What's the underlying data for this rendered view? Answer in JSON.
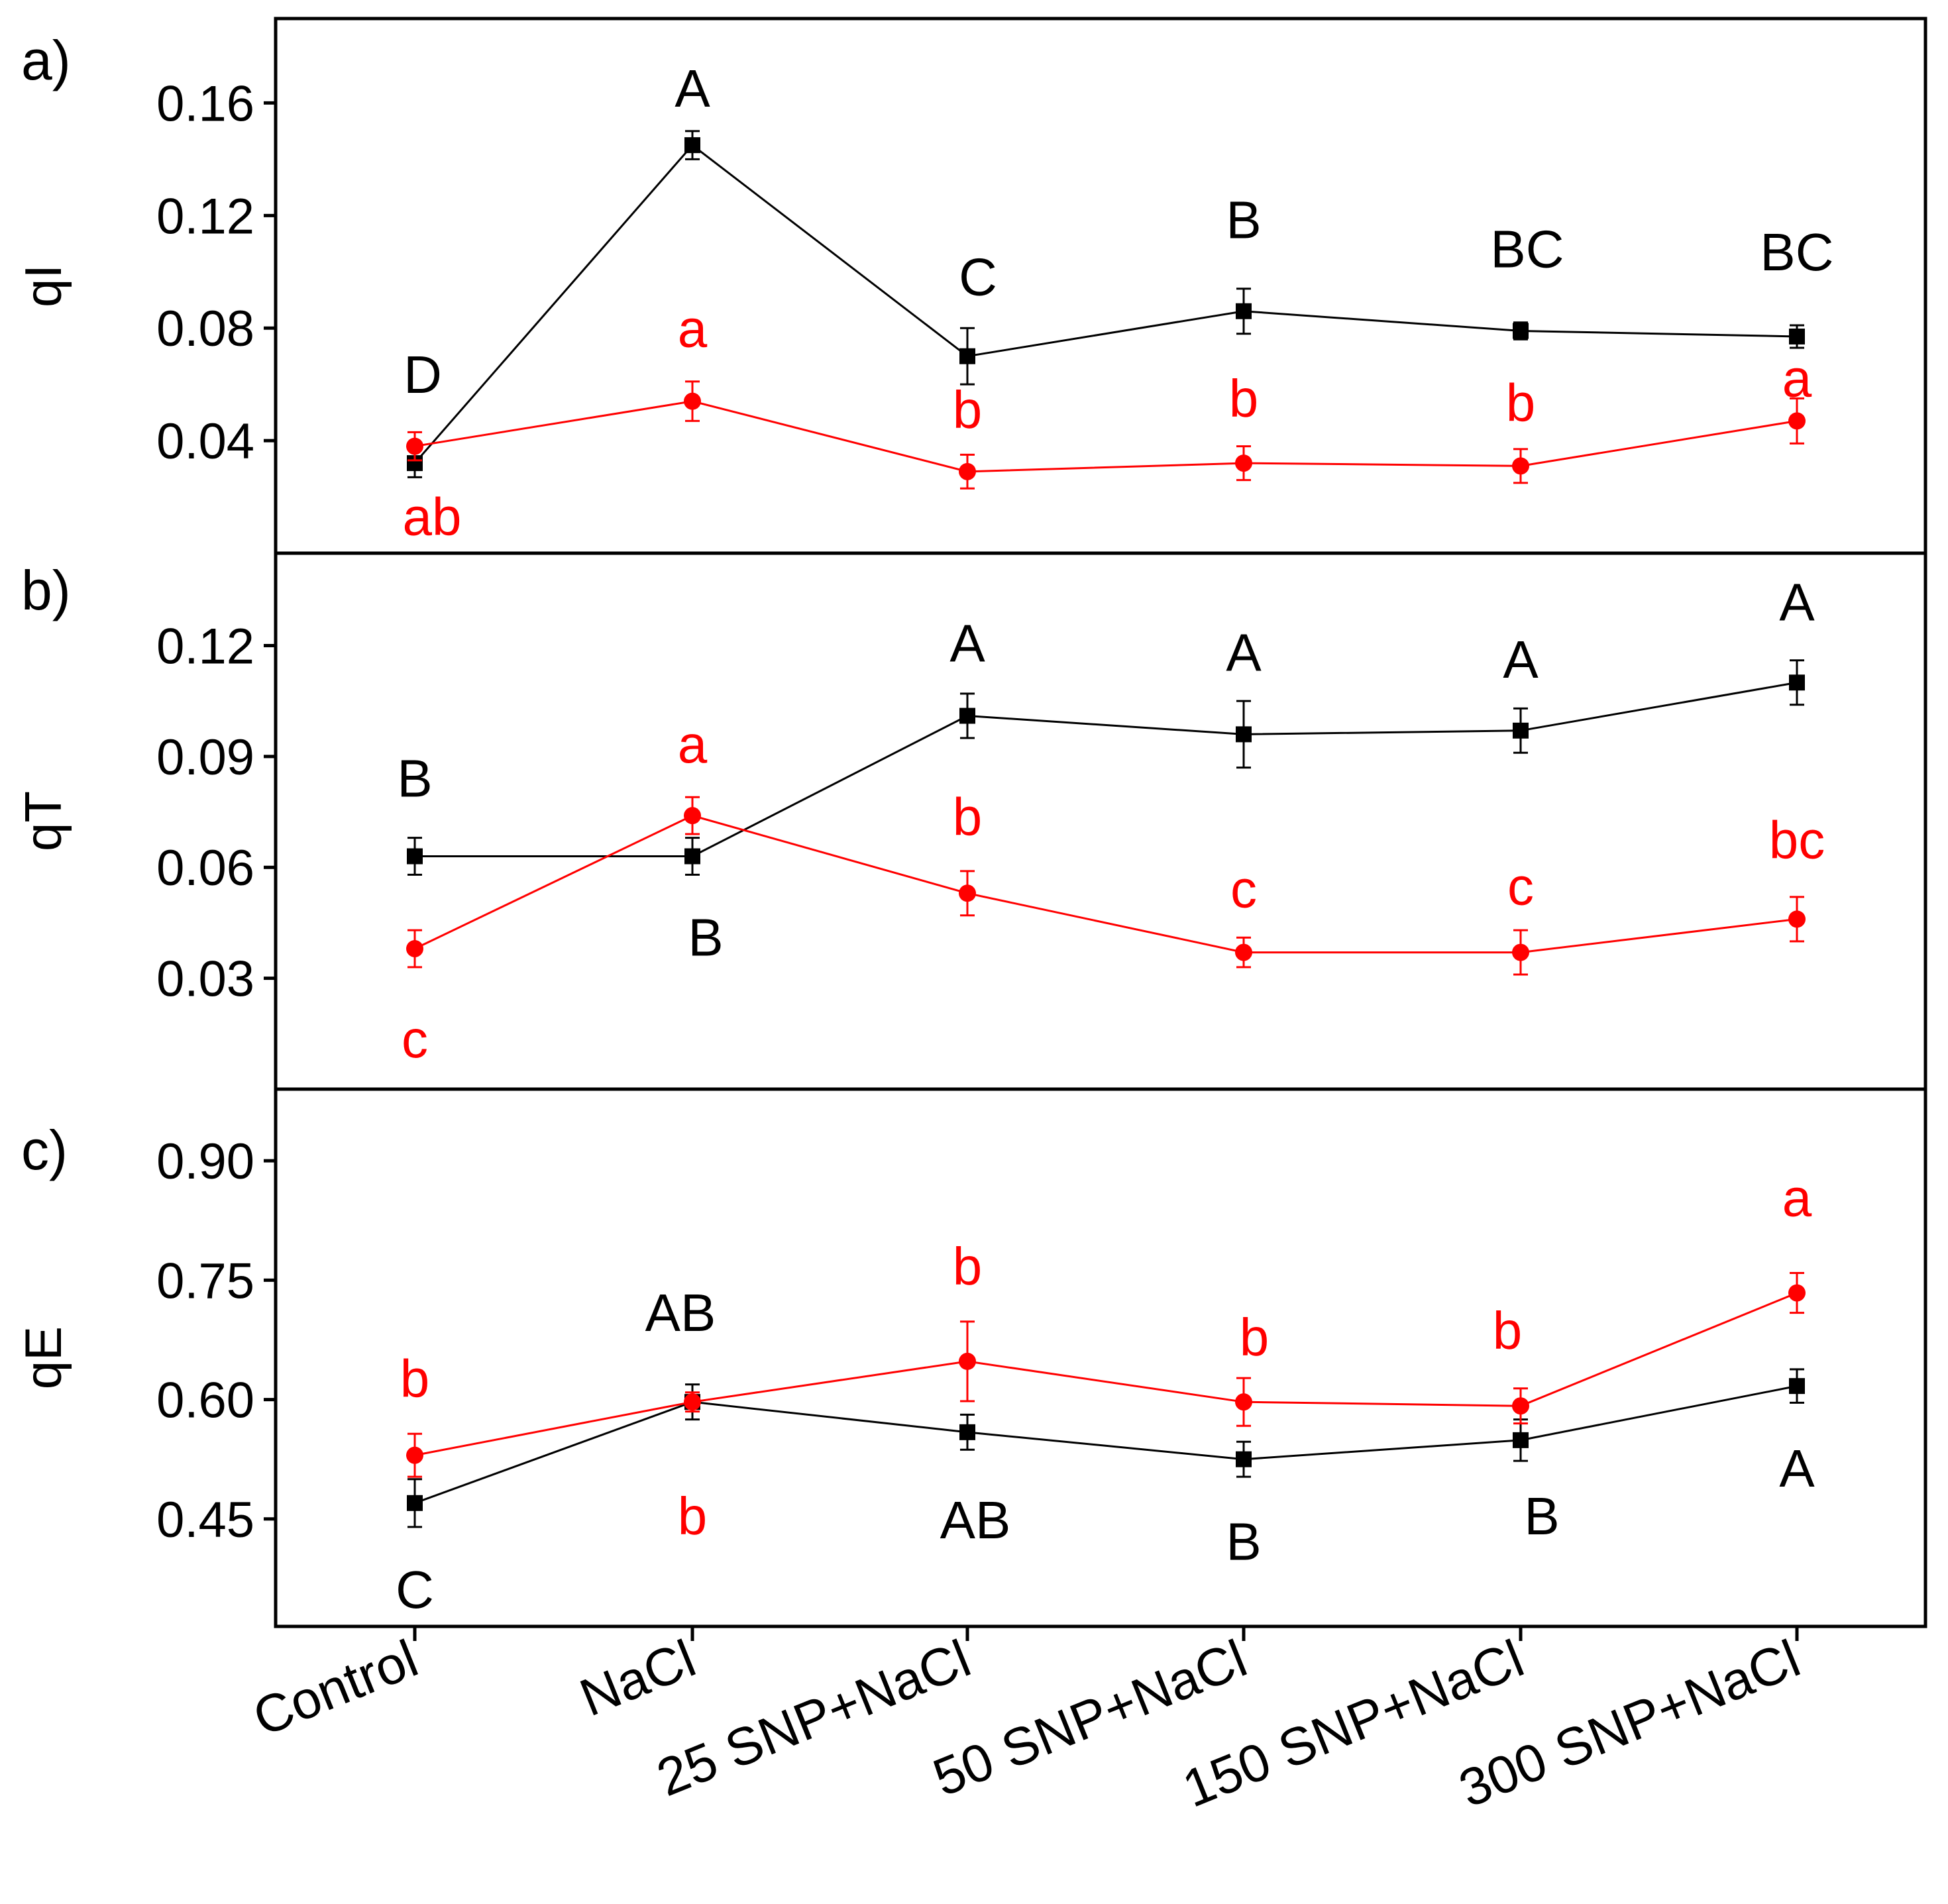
{
  "chart_data": [
    {
      "type": "line",
      "panel_label": "a)",
      "ylabel": "qI",
      "xlabel": "",
      "categories": [
        "Control",
        "NaCl",
        "25 SNP+NaCl",
        "50 SNP+NaCl",
        "150 SNP+NaCl",
        "300 SNP+NaCl"
      ],
      "ylim": [
        0.0,
        0.19
      ],
      "yticks": [
        0.04,
        0.08,
        0.12,
        0.16
      ],
      "ytick_labels": [
        "0.04",
        "0.08",
        "0.12",
        "0.16"
      ],
      "series": [
        {
          "name": "series-black",
          "color": "#000000",
          "marker": "square",
          "values": [
            0.032,
            0.145,
            0.07,
            0.086,
            0.079,
            0.077
          ],
          "errors": [
            0.005,
            0.005,
            0.01,
            0.008,
            0.003,
            0.004
          ],
          "letters": [
            "D",
            "A",
            "C",
            "B",
            "BC",
            "BC"
          ]
        },
        {
          "name": "series-red",
          "color": "#ff0000",
          "marker": "circle",
          "values": [
            0.038,
            0.054,
            0.029,
            0.032,
            0.031,
            0.047
          ],
          "errors": [
            0.005,
            0.007,
            0.006,
            0.006,
            0.006,
            0.008
          ],
          "letters": [
            "ab",
            "a",
            "b",
            "b",
            "b",
            "a"
          ]
        }
      ]
    },
    {
      "type": "line",
      "panel_label": "b)",
      "ylabel": "qT",
      "xlabel": "",
      "categories": [
        "Control",
        "NaCl",
        "25 SNP+NaCl",
        "50 SNP+NaCl",
        "150 SNP+NaCl",
        "300 SNP+NaCl"
      ],
      "ylim": [
        0.0,
        0.145
      ],
      "yticks": [
        0.03,
        0.06,
        0.09,
        0.12
      ],
      "ytick_labels": [
        "0.03",
        "0.06",
        "0.09",
        "0.12"
      ],
      "series": [
        {
          "name": "series-black",
          "color": "#000000",
          "marker": "square",
          "values": [
            0.063,
            0.063,
            0.101,
            0.096,
            0.097,
            0.11
          ],
          "errors": [
            0.005,
            0.005,
            0.006,
            0.009,
            0.006,
            0.006
          ],
          "letters": [
            "B",
            "B",
            "A",
            "A",
            "A",
            "A"
          ]
        },
        {
          "name": "series-red",
          "color": "#ff0000",
          "marker": "circle",
          "values": [
            0.038,
            0.074,
            0.053,
            0.037,
            0.037,
            0.046
          ],
          "errors": [
            0.005,
            0.005,
            0.006,
            0.004,
            0.006,
            0.006
          ],
          "letters": [
            "c",
            "a",
            "b",
            "c",
            "c",
            "bc"
          ]
        }
      ]
    },
    {
      "type": "line",
      "panel_label": "c)",
      "ylabel": "qE",
      "xlabel": "",
      "categories": [
        "Control",
        "NaCl",
        "25 SNP+NaCl",
        "50 SNP+NaCl",
        "150 SNP+NaCl",
        "300 SNP+NaCl"
      ],
      "ylim": [
        0.315,
        0.99
      ],
      "yticks": [
        0.45,
        0.6,
        0.75,
        0.9
      ],
      "ytick_labels": [
        "0.45",
        "0.60",
        "0.75",
        "0.90"
      ],
      "series": [
        {
          "name": "series-black",
          "color": "#000000",
          "marker": "square",
          "values": [
            0.47,
            0.597,
            0.559,
            0.525,
            0.549,
            0.617
          ],
          "errors": [
            0.03,
            0.022,
            0.022,
            0.022,
            0.026,
            0.021
          ],
          "letters": [
            "C",
            "AB",
            "AB",
            "B",
            "B",
            "A"
          ]
        },
        {
          "name": "series-red",
          "color": "#ff0000",
          "marker": "circle",
          "values": [
            0.53,
            0.597,
            0.648,
            0.597,
            0.592,
            0.734
          ],
          "errors": [
            0.027,
            0.012,
            0.05,
            0.03,
            0.022,
            0.025
          ],
          "letters": [
            "b",
            "b",
            "b",
            "b",
            "b",
            "a"
          ]
        }
      ]
    }
  ]
}
